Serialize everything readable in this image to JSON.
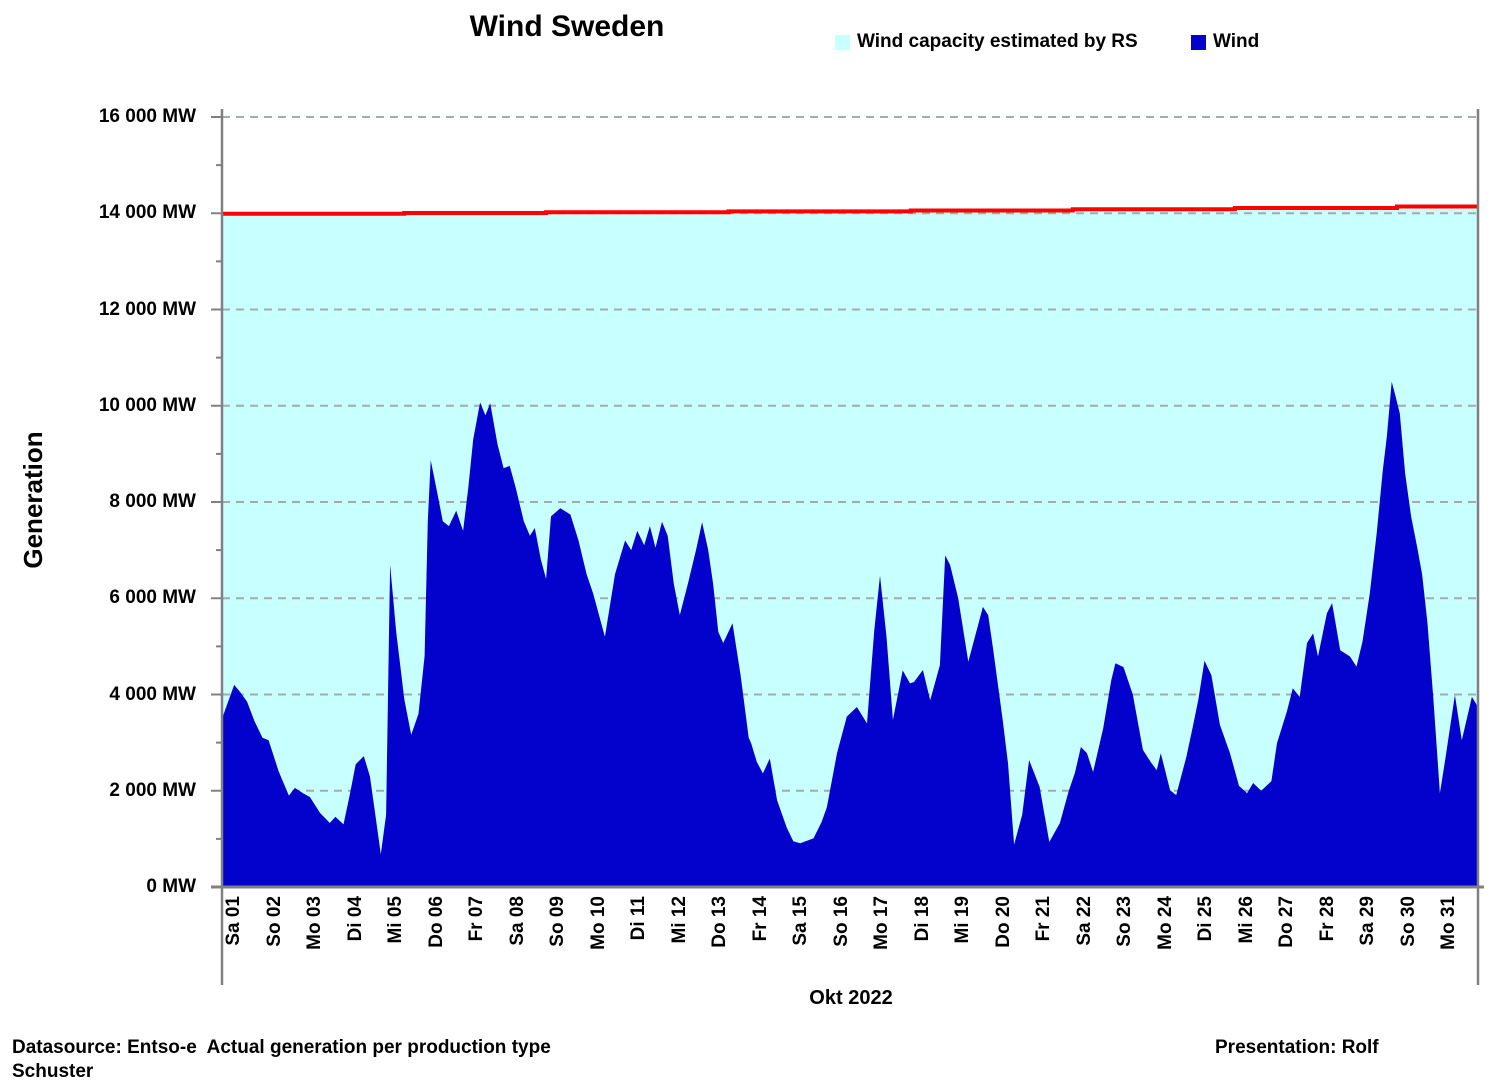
{
  "header": {
    "title": "Wind Sweden"
  },
  "footer": {
    "left": "Datasource: Entso-e  Actual generation per production type",
    "right": "Presentation: Rolf",
    "wrap": "Schuster"
  },
  "chart_data": {
    "type": "area",
    "title": "Wind Sweden",
    "ylabel": "Generation",
    "xlabel": "Okt 2022",
    "ylim": [
      0,
      16000
    ],
    "xlim": [
      0,
      31
    ],
    "y_tick_step": 2000,
    "y_minor_tick_step": 1000,
    "grid": "dashed horizontal",
    "legend_position": "top",
    "colors": {
      "axis": "#808080",
      "gridline": "#a4abab",
      "capacity_fill": "#c8ffff",
      "capacity_line": "#fe0000",
      "wind_fill": "#0202cc"
    },
    "y_tick_labels": [
      "0 MW",
      "2 000 MW",
      "4 000 MW",
      "6 000 MW",
      "8 000 MW",
      "10 000 MW",
      "12 000 MW",
      "14 000 MW",
      "16 000 MW"
    ],
    "x_labels": [
      "Sa 01",
      "So 02",
      "Mo 03",
      "Di 04",
      "Mi 05",
      "Do 06",
      "Fr 07",
      "Sa 08",
      "So 09",
      "Mo 10",
      "Di 11",
      "Mi 12",
      "Do 13",
      "Fr 14",
      "Sa 15",
      "So 16",
      "Mo 17",
      "Di 18",
      "Mi 19",
      "Do 20",
      "Fr 21",
      "Sa 22",
      "So 23",
      "Mo 24",
      "Di 25",
      "Mi 26",
      "Do 27",
      "Fr 28",
      "Sa 29",
      "So 30",
      "Mo 31"
    ],
    "series": [
      {
        "name": "Wind capacity estimated by RS",
        "unit": "MW",
        "x_unit": "days since Okt 01 2022",
        "points": [
          [
            0,
            13990
          ],
          [
            4.5,
            13990
          ],
          [
            4.5,
            14005
          ],
          [
            8,
            14005
          ],
          [
            8,
            14022
          ],
          [
            12.5,
            14022
          ],
          [
            12.5,
            14038
          ],
          [
            17,
            14038
          ],
          [
            17,
            14058
          ],
          [
            21,
            14058
          ],
          [
            21,
            14082
          ],
          [
            25,
            14082
          ],
          [
            25,
            14110
          ],
          [
            29,
            14110
          ],
          [
            29,
            14140
          ],
          [
            31,
            14140
          ]
        ]
      },
      {
        "name": "Wind",
        "unit": "MW",
        "x_unit": "days since Okt 01 2022",
        "points": [
          [
            0,
            3500
          ],
          [
            0.15,
            3850
          ],
          [
            0.3,
            4200
          ],
          [
            0.45,
            4050
          ],
          [
            0.62,
            3850
          ],
          [
            0.8,
            3450
          ],
          [
            1.0,
            3100
          ],
          [
            1.15,
            3050
          ],
          [
            1.4,
            2400
          ],
          [
            1.65,
            1900
          ],
          [
            1.8,
            2060
          ],
          [
            2.0,
            1950
          ],
          [
            2.17,
            1870
          ],
          [
            2.42,
            1540
          ],
          [
            2.66,
            1330
          ],
          [
            2.8,
            1460
          ],
          [
            3.0,
            1300
          ],
          [
            3.15,
            1900
          ],
          [
            3.3,
            2550
          ],
          [
            3.5,
            2720
          ],
          [
            3.65,
            2300
          ],
          [
            3.8,
            1400
          ],
          [
            3.92,
            680
          ],
          [
            4.05,
            1500
          ],
          [
            4.15,
            6700
          ],
          [
            4.3,
            5300
          ],
          [
            4.5,
            3900
          ],
          [
            4.67,
            3160
          ],
          [
            4.85,
            3600
          ],
          [
            5.0,
            4800
          ],
          [
            5.08,
            7600
          ],
          [
            5.15,
            8870
          ],
          [
            5.3,
            8250
          ],
          [
            5.45,
            7600
          ],
          [
            5.6,
            7500
          ],
          [
            5.78,
            7820
          ],
          [
            5.95,
            7400
          ],
          [
            6.08,
            8300
          ],
          [
            6.2,
            9300
          ],
          [
            6.37,
            10070
          ],
          [
            6.5,
            9800
          ],
          [
            6.62,
            10050
          ],
          [
            6.8,
            9200
          ],
          [
            6.95,
            8700
          ],
          [
            7.1,
            8750
          ],
          [
            7.25,
            8300
          ],
          [
            7.45,
            7600
          ],
          [
            7.6,
            7300
          ],
          [
            7.72,
            7460
          ],
          [
            7.87,
            6800
          ],
          [
            8.0,
            6400
          ],
          [
            8.12,
            7700
          ],
          [
            8.35,
            7870
          ],
          [
            8.6,
            7740
          ],
          [
            8.8,
            7200
          ],
          [
            9.0,
            6500
          ],
          [
            9.16,
            6100
          ],
          [
            9.45,
            5200
          ],
          [
            9.7,
            6500
          ],
          [
            9.95,
            7200
          ],
          [
            10.1,
            7000
          ],
          [
            10.25,
            7400
          ],
          [
            10.42,
            7100
          ],
          [
            10.56,
            7500
          ],
          [
            10.7,
            7050
          ],
          [
            10.86,
            7590
          ],
          [
            11.0,
            7300
          ],
          [
            11.15,
            6300
          ],
          [
            11.3,
            5650
          ],
          [
            11.5,
            6300
          ],
          [
            11.7,
            7000
          ],
          [
            11.85,
            7580
          ],
          [
            12.0,
            7000
          ],
          [
            12.12,
            6300
          ],
          [
            12.25,
            5300
          ],
          [
            12.37,
            5070
          ],
          [
            12.6,
            5480
          ],
          [
            12.8,
            4400
          ],
          [
            13.0,
            3100
          ],
          [
            13.06,
            2990
          ],
          [
            13.2,
            2600
          ],
          [
            13.35,
            2360
          ],
          [
            13.52,
            2670
          ],
          [
            13.7,
            1800
          ],
          [
            13.94,
            1230
          ],
          [
            14.1,
            950
          ],
          [
            14.27,
            910
          ],
          [
            14.6,
            1010
          ],
          [
            14.8,
            1350
          ],
          [
            14.93,
            1660
          ],
          [
            15.18,
            2780
          ],
          [
            15.42,
            3540
          ],
          [
            15.67,
            3740
          ],
          [
            15.92,
            3400
          ],
          [
            16.1,
            5340
          ],
          [
            16.24,
            6470
          ],
          [
            16.4,
            5200
          ],
          [
            16.56,
            3470
          ],
          [
            16.8,
            4500
          ],
          [
            16.98,
            4230
          ],
          [
            17.08,
            4260
          ],
          [
            17.3,
            4510
          ],
          [
            17.48,
            3880
          ],
          [
            17.72,
            4610
          ],
          [
            17.85,
            6890
          ],
          [
            17.97,
            6690
          ],
          [
            18.17,
            6000
          ],
          [
            18.42,
            4680
          ],
          [
            18.78,
            5820
          ],
          [
            18.91,
            5650
          ],
          [
            19.03,
            4960
          ],
          [
            19.27,
            3470
          ],
          [
            19.4,
            2570
          ],
          [
            19.55,
            880
          ],
          [
            19.75,
            1500
          ],
          [
            19.92,
            2640
          ],
          [
            20.18,
            2080
          ],
          [
            20.42,
            935
          ],
          [
            20.68,
            1330
          ],
          [
            20.9,
            2000
          ],
          [
            21.05,
            2370
          ],
          [
            21.2,
            2910
          ],
          [
            21.35,
            2780
          ],
          [
            21.5,
            2390
          ],
          [
            21.75,
            3300
          ],
          [
            21.95,
            4300
          ],
          [
            22.05,
            4650
          ],
          [
            22.25,
            4570
          ],
          [
            22.48,
            4000
          ],
          [
            22.73,
            2850
          ],
          [
            22.92,
            2600
          ],
          [
            23.07,
            2430
          ],
          [
            23.17,
            2780
          ],
          [
            23.4,
            2010
          ],
          [
            23.55,
            1910
          ],
          [
            23.8,
            2700
          ],
          [
            23.96,
            3330
          ],
          [
            24.1,
            3900
          ],
          [
            24.25,
            4700
          ],
          [
            24.42,
            4400
          ],
          [
            24.63,
            3370
          ],
          [
            24.88,
            2780
          ],
          [
            25.1,
            2100
          ],
          [
            25.3,
            1950
          ],
          [
            25.45,
            2160
          ],
          [
            25.65,
            2000
          ],
          [
            25.9,
            2200
          ],
          [
            26.04,
            2990
          ],
          [
            26.28,
            3640
          ],
          [
            26.43,
            4130
          ],
          [
            26.6,
            3950
          ],
          [
            26.78,
            5070
          ],
          [
            26.93,
            5270
          ],
          [
            27.05,
            4790
          ],
          [
            27.27,
            5690
          ],
          [
            27.4,
            5900
          ],
          [
            27.6,
            4920
          ],
          [
            27.84,
            4790
          ],
          [
            28.0,
            4580
          ],
          [
            28.15,
            5100
          ],
          [
            28.33,
            6100
          ],
          [
            28.5,
            7350
          ],
          [
            28.65,
            8660
          ],
          [
            28.75,
            9350
          ],
          [
            28.87,
            10500
          ],
          [
            28.95,
            10250
          ],
          [
            29.07,
            9840
          ],
          [
            29.2,
            8600
          ],
          [
            29.35,
            7700
          ],
          [
            29.5,
            7060
          ],
          [
            29.62,
            6500
          ],
          [
            29.75,
            5500
          ],
          [
            29.9,
            3900
          ],
          [
            30.06,
            1950
          ],
          [
            30.2,
            2700
          ],
          [
            30.43,
            3990
          ],
          [
            30.6,
            3050
          ],
          [
            30.85,
            3950
          ],
          [
            31.0,
            3740
          ]
        ]
      }
    ]
  }
}
